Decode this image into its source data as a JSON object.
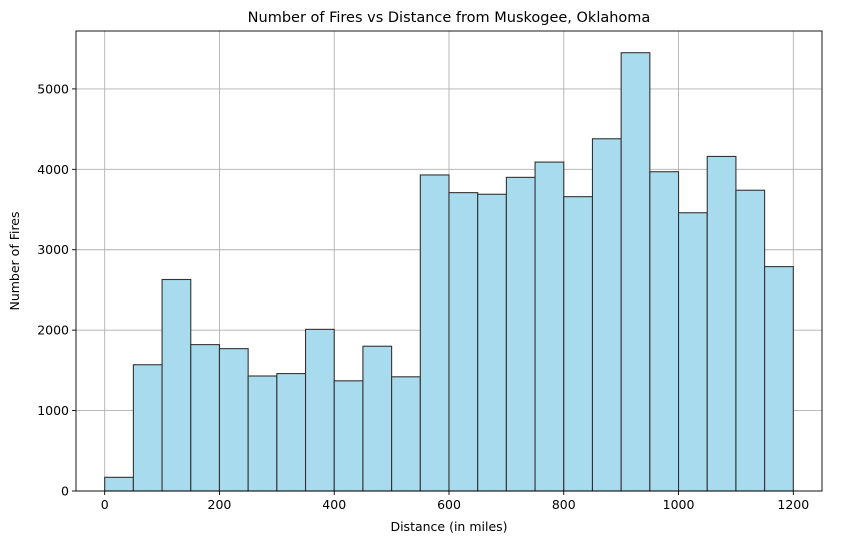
{
  "chart_data": {
    "type": "bar",
    "title": "Number of Fires vs Distance from Muskogee, Oklahoma",
    "xlabel": "Distance (in miles)",
    "ylabel": "Number of Fires",
    "xlim": [
      -50,
      1250
    ],
    "ylim": [
      0,
      5720
    ],
    "x_ticks": [
      0,
      200,
      400,
      600,
      800,
      1000,
      1200
    ],
    "y_ticks": [
      0,
      1000,
      2000,
      3000,
      4000,
      5000
    ],
    "bin_edges": [
      0,
      50,
      100,
      150,
      200,
      250,
      300,
      350,
      400,
      450,
      500,
      550,
      600,
      650,
      700,
      750,
      800,
      850,
      900,
      950,
      1000,
      1050,
      1100,
      1150,
      1200
    ],
    "values": [
      170,
      1570,
      2630,
      1820,
      1770,
      1430,
      1460,
      2010,
      1370,
      1800,
      1420,
      3930,
      3710,
      3690,
      3900,
      4090,
      3660,
      4380,
      5450,
      3970,
      3460,
      4160,
      3740,
      2790
    ],
    "grid": true,
    "bar_color": "#a9dbee",
    "edge_color": "#333333"
  }
}
